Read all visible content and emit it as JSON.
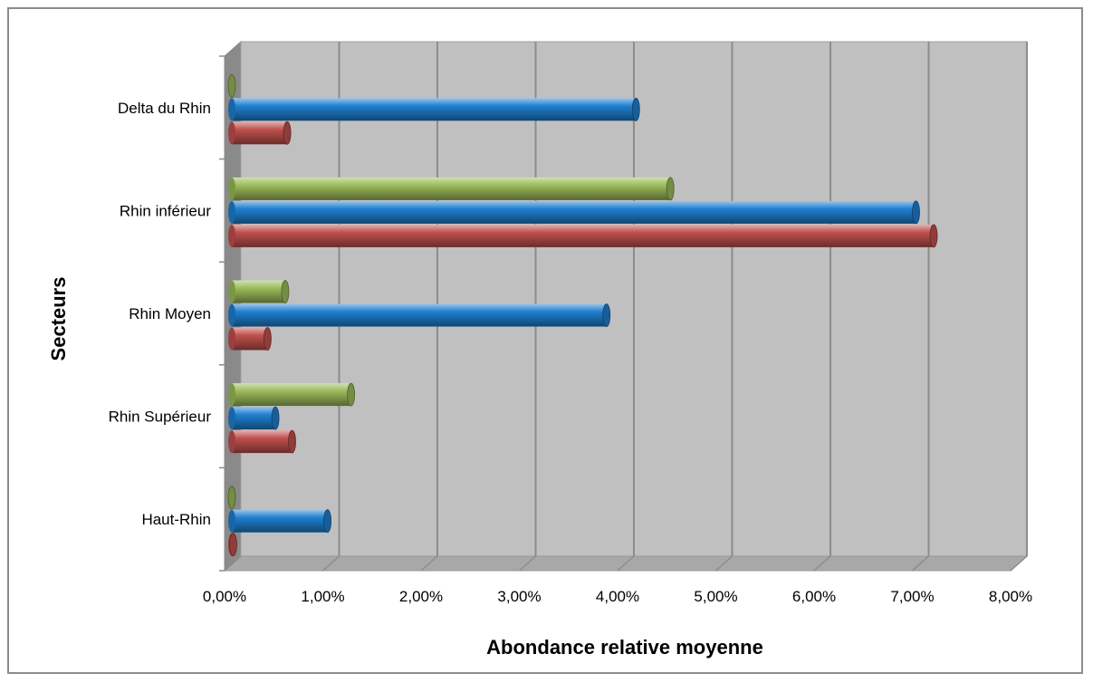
{
  "chart_data": {
    "type": "bar",
    "orientation": "horizontal",
    "style": "3d-cylinder",
    "categories": [
      "Haut-Rhin",
      "Rhin Supérieur",
      "Rhin Moyen",
      "Rhin inférieur",
      "Delta du Rhin"
    ],
    "series": [
      {
        "color": "#c0504d",
        "values": [
          0.0005,
          0.0065,
          0.004,
          0.0718,
          0.006
        ]
      },
      {
        "color": "#1f7fd0",
        "values": [
          0.0101,
          0.0048,
          0.0385,
          0.07,
          0.0415
        ]
      },
      {
        "color": "#9bbb59",
        "values": [
          0.0,
          0.0125,
          0.0058,
          0.045,
          0.0
        ]
      }
    ],
    "xlabel": "Abondance relative moyenne",
    "ylabel": "Secteurs",
    "xlim": [
      0,
      0.08
    ],
    "x_ticks": [
      "0,00%",
      "1,00%",
      "2,00%",
      "3,00%",
      "4,00%",
      "5,00%",
      "6,00%",
      "7,00%",
      "8,00%"
    ],
    "grid": true,
    "legend": "none"
  }
}
